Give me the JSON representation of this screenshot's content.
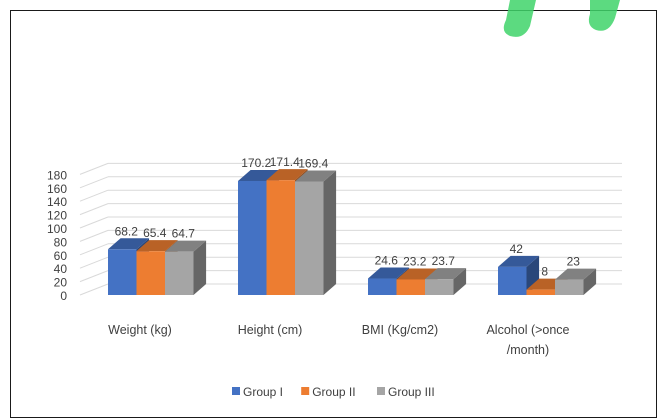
{
  "chart_data": {
    "type": "bar",
    "style": "3d-clustered-column",
    "categories": [
      "Weight (kg)",
      "Height (cm)",
      "BMI (Kg/cm2)",
      "Alcohol (>once /month)"
    ],
    "category_lines": [
      [
        "Weight (kg)"
      ],
      [
        "Height (cm)"
      ],
      [
        "BMI (Kg/cm2)"
      ],
      [
        "Alcohol (>once",
        "/month)"
      ]
    ],
    "series": [
      {
        "name": "Group I",
        "values": [
          68.2,
          170.2,
          24.6,
          42
        ],
        "labels": [
          "68.2",
          "170.2",
          "24.6",
          "42"
        ],
        "color": "#4472C4"
      },
      {
        "name": "Group II",
        "values": [
          65.4,
          171.4,
          23.2,
          8
        ],
        "labels": [
          "65.4",
          "171.4",
          "23.2",
          "8"
        ],
        "color": "#ED7D31"
      },
      {
        "name": "Group III",
        "values": [
          64.7,
          169.4,
          23.7,
          23
        ],
        "labels": [
          "64.7",
          "169.4",
          "23.7",
          "23"
        ],
        "color": "#A5A5A5"
      }
    ],
    "y_ticks": [
      "0",
      "20",
      "40",
      "60",
      "80",
      "100",
      "120",
      "140",
      "160",
      "180"
    ],
    "ylim": [
      0,
      200
    ],
    "grid": true,
    "legend_position": "bottom",
    "title": "",
    "xlabel": "",
    "ylabel": ""
  }
}
